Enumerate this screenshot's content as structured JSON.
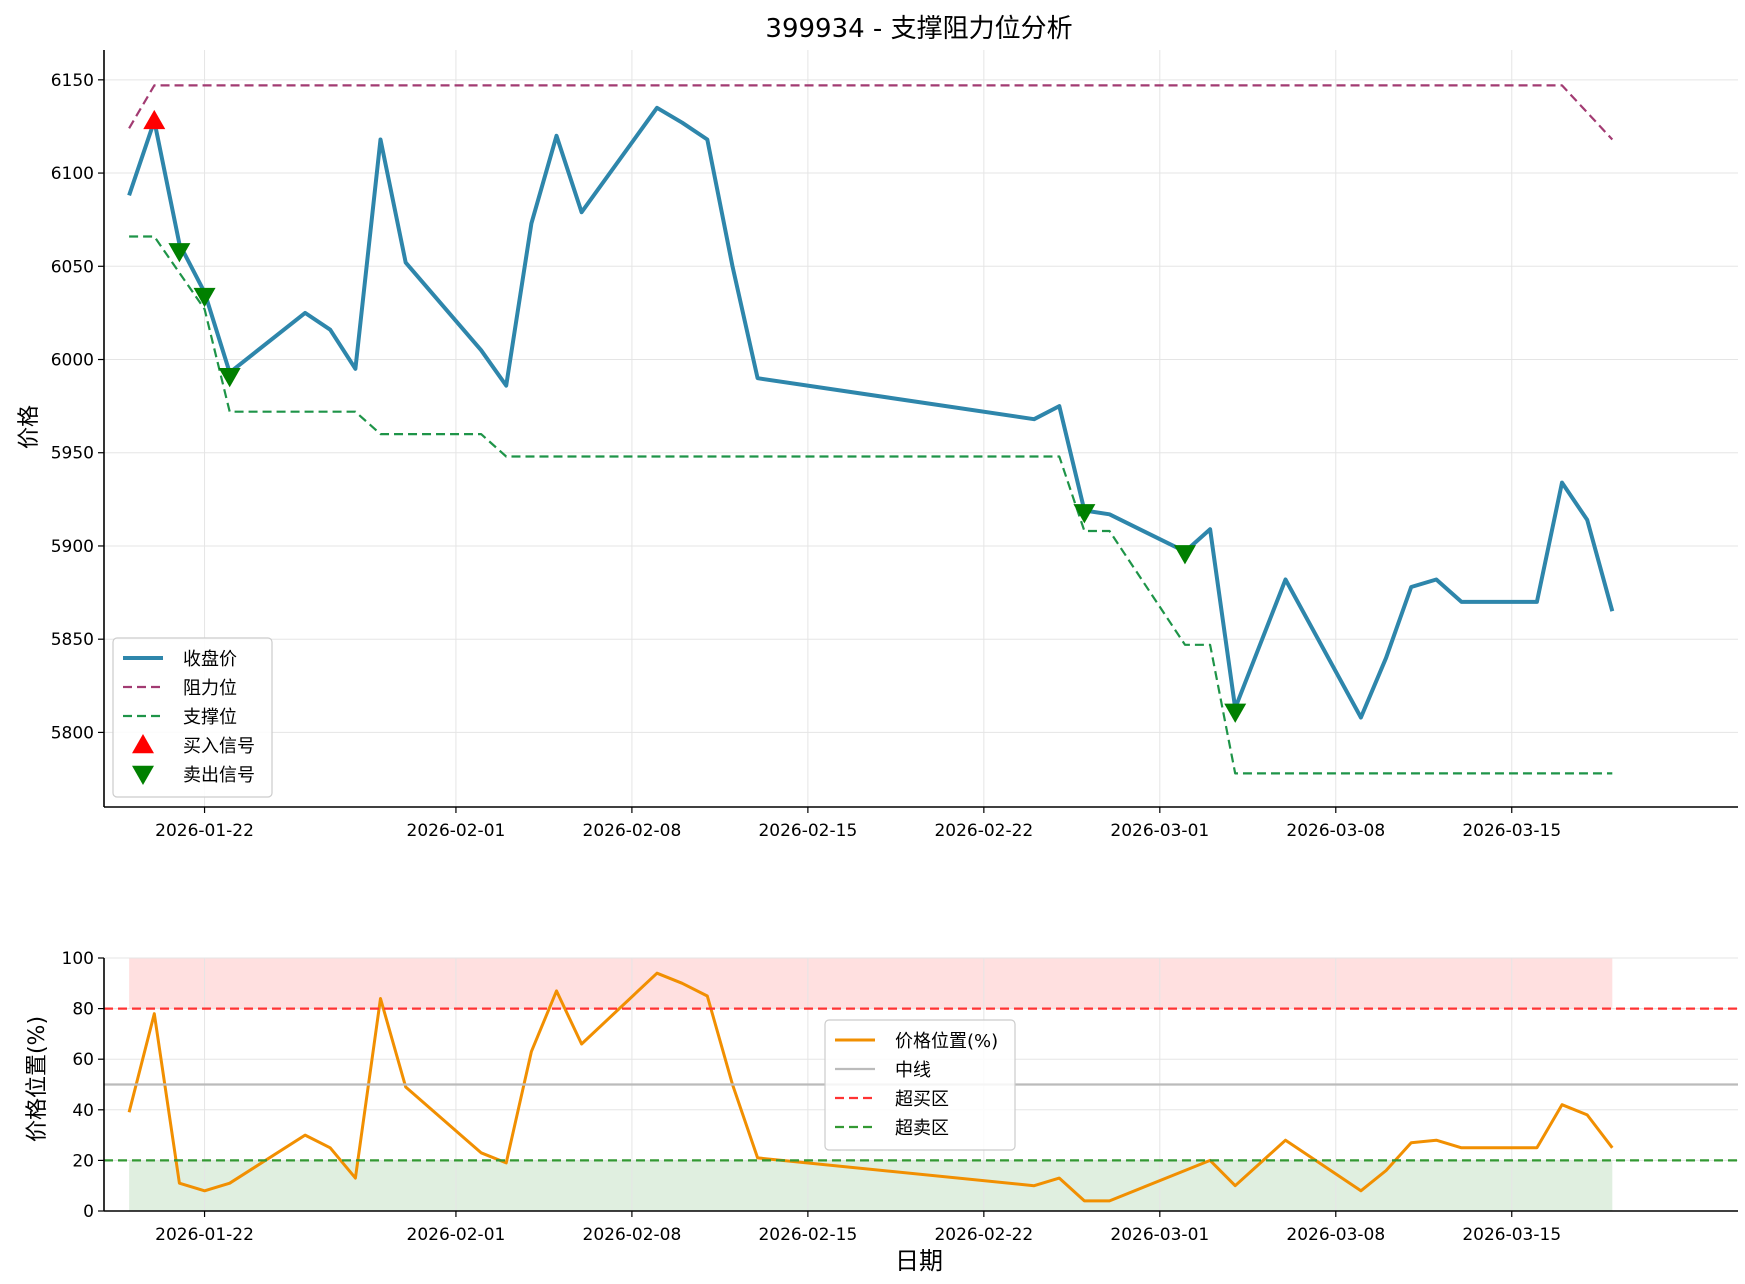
{
  "chart_data": [
    {
      "type": "line",
      "title": "399934 - 支撑阻力位分析",
      "ylabel": "价格",
      "xlabel": "",
      "ylim": [
        5760,
        6166
      ],
      "yticks": [
        5800,
        5850,
        5900,
        5950,
        6000,
        6050,
        6100,
        6150
      ],
      "xrange": [
        "2026-01-18",
        "2026-03-24"
      ],
      "xticks": [
        "2026-01-22",
        "2026-02-01",
        "2026-02-08",
        "2026-02-15",
        "2026-02-22",
        "2026-03-01",
        "2026-03-08",
        "2026-03-15"
      ],
      "grid": true,
      "legend_position": "lower-left",
      "series": [
        {
          "name": "收盘价",
          "style": "solid",
          "color": "#2e86ab",
          "points": [
            [
              "2026-01-19",
              6088
            ],
            [
              "2026-01-20",
              6128
            ],
            [
              "2026-01-21",
              6062
            ],
            [
              "2026-01-22",
              6036
            ],
            [
              "2026-01-23",
              5993
            ],
            [
              "2026-01-26",
              6025
            ],
            [
              "2026-01-27",
              6016
            ],
            [
              "2026-01-28",
              5995
            ],
            [
              "2026-01-29",
              6118
            ],
            [
              "2026-01-30",
              6052
            ],
            [
              "2026-02-02",
              6005
            ],
            [
              "2026-02-03",
              5986
            ],
            [
              "2026-02-04",
              6073
            ],
            [
              "2026-02-05",
              6120
            ],
            [
              "2026-02-06",
              6079
            ],
            [
              "2026-02-09",
              6135
            ],
            [
              "2026-02-10",
              6127
            ],
            [
              "2026-02-11",
              6118
            ],
            [
              "2026-02-12",
              6050
            ],
            [
              "2026-02-13",
              5990
            ],
            [
              "2026-02-24",
              5968
            ],
            [
              "2026-02-25",
              5975
            ],
            [
              "2026-02-26",
              5919
            ],
            [
              "2026-02-27",
              5917
            ],
            [
              "2026-03-02",
              5897
            ],
            [
              "2026-03-03",
              5909
            ],
            [
              "2026-03-04",
              5813
            ],
            [
              "2026-03-06",
              5882
            ],
            [
              "2026-03-09",
              5808
            ],
            [
              "2026-03-10",
              5840
            ],
            [
              "2026-03-11",
              5878
            ],
            [
              "2026-03-12",
              5882
            ],
            [
              "2026-03-13",
              5870
            ],
            [
              "2026-03-16",
              5870
            ],
            [
              "2026-03-17",
              5934
            ],
            [
              "2026-03-18",
              5914
            ],
            [
              "2026-03-19",
              5865
            ]
          ]
        },
        {
          "name": "阻力位",
          "style": "dashed",
          "color": "#a23b72",
          "points": [
            [
              "2026-01-19",
              6124
            ],
            [
              "2026-01-20",
              6147
            ],
            [
              "2026-03-17",
              6147
            ],
            [
              "2026-03-19",
              6118
            ]
          ]
        },
        {
          "name": "支撑位",
          "style": "dashed",
          "color": "#1e9448",
          "points": [
            [
              "2026-01-19",
              6066
            ],
            [
              "2026-01-20",
              6066
            ],
            [
              "2026-01-22",
              6027
            ],
            [
              "2026-01-23",
              5972
            ],
            [
              "2026-01-28",
              5972
            ],
            [
              "2026-01-29",
              5960
            ],
            [
              "2026-02-02",
              5960
            ],
            [
              "2026-02-03",
              5948
            ],
            [
              "2026-02-25",
              5948
            ],
            [
              "2026-02-26",
              5908
            ],
            [
              "2026-02-27",
              5908
            ],
            [
              "2026-03-02",
              5847
            ],
            [
              "2026-03-03",
              5847
            ],
            [
              "2026-03-04",
              5778
            ],
            [
              "2026-03-19",
              5778
            ]
          ]
        }
      ],
      "markers": [
        {
          "name": "买入信号",
          "shape": "triangle-up",
          "color": "#ff0000",
          "points": [
            [
              "2026-01-20",
              6128
            ]
          ]
        },
        {
          "name": "卖出信号",
          "shape": "triangle-down",
          "color": "#008000",
          "points": [
            [
              "2026-01-21",
              6058
            ],
            [
              "2026-01-22",
              6034
            ],
            [
              "2026-01-23",
              5991
            ],
            [
              "2026-02-26",
              5918
            ],
            [
              "2026-03-02",
              5896
            ],
            [
              "2026-03-04",
              5811
            ]
          ]
        }
      ]
    },
    {
      "type": "line",
      "title": "",
      "ylabel": "价格位置(%)",
      "xlabel": "日期",
      "ylim": [
        0,
        100
      ],
      "yticks": [
        0,
        20,
        40,
        60,
        80,
        100
      ],
      "xrange": [
        "2026-01-18",
        "2026-03-24"
      ],
      "xticks": [
        "2026-01-22",
        "2026-02-01",
        "2026-02-08",
        "2026-02-15",
        "2026-02-22",
        "2026-03-01",
        "2026-03-08",
        "2026-03-15"
      ],
      "grid": true,
      "legend_position": "center",
      "bands": [
        {
          "from": 80,
          "to": 100,
          "color": "#ffcccc",
          "x_from": "2026-01-19",
          "x_to": "2026-03-19"
        },
        {
          "from": 0,
          "to": 20,
          "color": "#cce5cc",
          "x_from": "2026-01-19",
          "x_to": "2026-03-19"
        }
      ],
      "series": [
        {
          "name": "价格位置(%)",
          "style": "solid",
          "color": "#f18f01",
          "points": [
            [
              "2026-01-19",
              39
            ],
            [
              "2026-01-20",
              78
            ],
            [
              "2026-01-21",
              11
            ],
            [
              "2026-01-22",
              8
            ],
            [
              "2026-01-23",
              11
            ],
            [
              "2026-01-26",
              30
            ],
            [
              "2026-01-27",
              25
            ],
            [
              "2026-01-28",
              13
            ],
            [
              "2026-01-29",
              84
            ],
            [
              "2026-01-30",
              49
            ],
            [
              "2026-02-02",
              23
            ],
            [
              "2026-02-03",
              19
            ],
            [
              "2026-02-04",
              63
            ],
            [
              "2026-02-05",
              87
            ],
            [
              "2026-02-06",
              66
            ],
            [
              "2026-02-09",
              94
            ],
            [
              "2026-02-10",
              90
            ],
            [
              "2026-02-11",
              85
            ],
            [
              "2026-02-12",
              50
            ],
            [
              "2026-02-13",
              21
            ],
            [
              "2026-02-24",
              10
            ],
            [
              "2026-02-25",
              13
            ],
            [
              "2026-02-26",
              4
            ],
            [
              "2026-02-27",
              4
            ],
            [
              "2026-03-02",
              16
            ],
            [
              "2026-03-03",
              20
            ],
            [
              "2026-03-04",
              10
            ],
            [
              "2026-03-06",
              28
            ],
            [
              "2026-03-09",
              8
            ],
            [
              "2026-03-10",
              16
            ],
            [
              "2026-03-11",
              27
            ],
            [
              "2026-03-12",
              28
            ],
            [
              "2026-03-13",
              25
            ],
            [
              "2026-03-16",
              25
            ],
            [
              "2026-03-17",
              42
            ],
            [
              "2026-03-18",
              38
            ],
            [
              "2026-03-19",
              25
            ]
          ]
        },
        {
          "name": "中线",
          "style": "solid",
          "color": "#bbbbbb",
          "y": 50
        },
        {
          "name": "超买区",
          "style": "dashed",
          "color": "#ff3333",
          "y": 80
        },
        {
          "name": "超卖区",
          "style": "dashed",
          "color": "#339933",
          "y": 20
        }
      ]
    }
  ]
}
